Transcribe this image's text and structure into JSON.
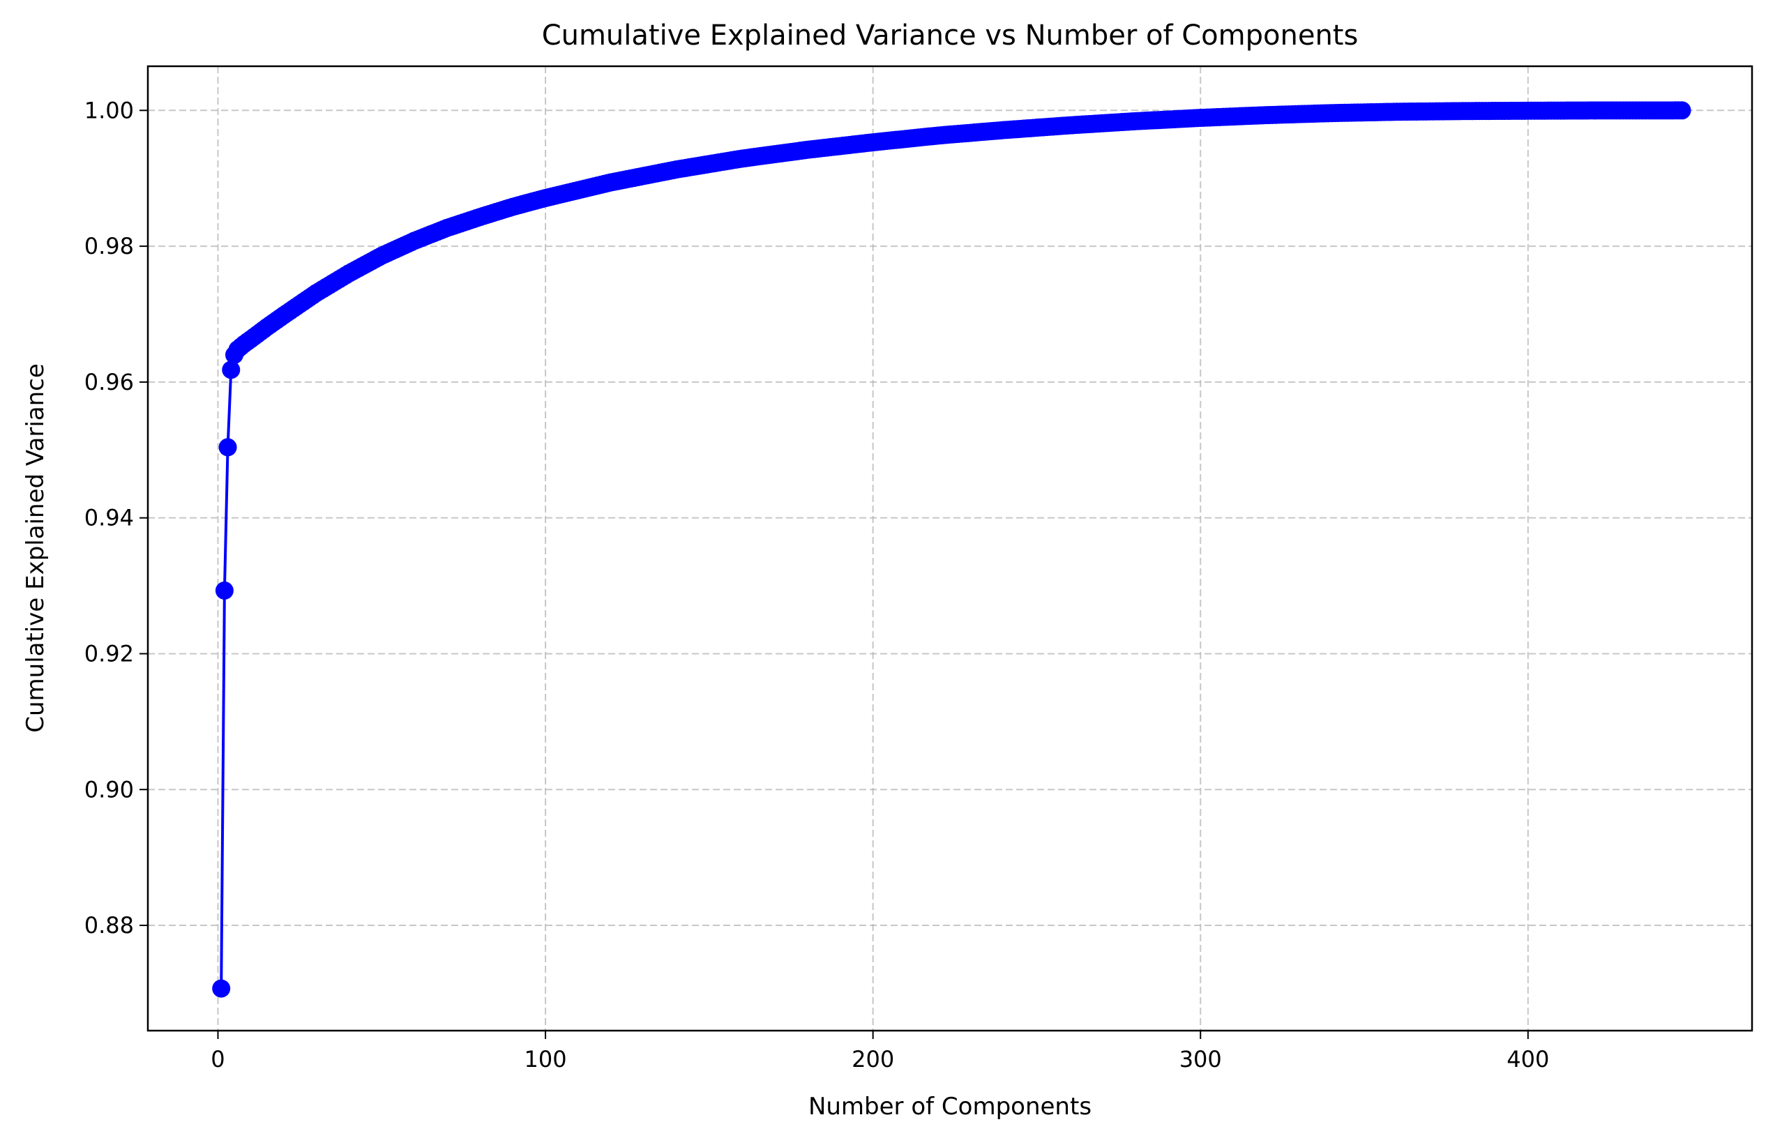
{
  "chart_data": {
    "type": "line",
    "title": "Cumulative Explained Variance vs Number of Components",
    "xlabel": "Number of Components",
    "ylabel": "Cumulative Explained Variance",
    "xlim": [
      -21.4,
      468.4
    ],
    "ylim": [
      0.8645,
      1.0065
    ],
    "x_ticks": [
      0,
      100,
      200,
      300,
      400
    ],
    "x_tick_labels": [
      "0",
      "100",
      "200",
      "300",
      "400"
    ],
    "y_ticks": [
      0.88,
      0.9,
      0.92,
      0.94,
      0.96,
      0.98,
      1.0
    ],
    "y_tick_labels": [
      "0.88",
      "0.90",
      "0.92",
      "0.94",
      "0.96",
      "0.98",
      "1.00"
    ],
    "grid": true,
    "legend": "none",
    "series": [
      {
        "color": "#0000ff",
        "marker": "circle",
        "x": [
          1,
          2,
          3,
          4,
          5,
          6,
          8,
          10,
          15,
          20,
          30,
          40,
          50,
          60,
          70,
          80,
          90,
          100,
          120,
          140,
          160,
          180,
          200,
          220,
          240,
          260,
          280,
          300,
          320,
          340,
          360,
          380,
          400,
          420,
          447
        ],
        "y": [
          0.8707,
          0.9293,
          0.9504,
          0.9618,
          0.964,
          0.9648,
          0.9656,
          0.9663,
          0.9681,
          0.9698,
          0.9731,
          0.976,
          0.9786,
          0.9808,
          0.9827,
          0.9843,
          0.9858,
          0.9871,
          0.9894,
          0.9913,
          0.9929,
          0.9942,
          0.9953,
          0.9963,
          0.9971,
          0.9978,
          0.9984,
          0.9989,
          0.9993,
          0.9996,
          0.9998,
          0.9999,
          0.99995,
          0.99999,
          1.0
        ]
      }
    ]
  }
}
